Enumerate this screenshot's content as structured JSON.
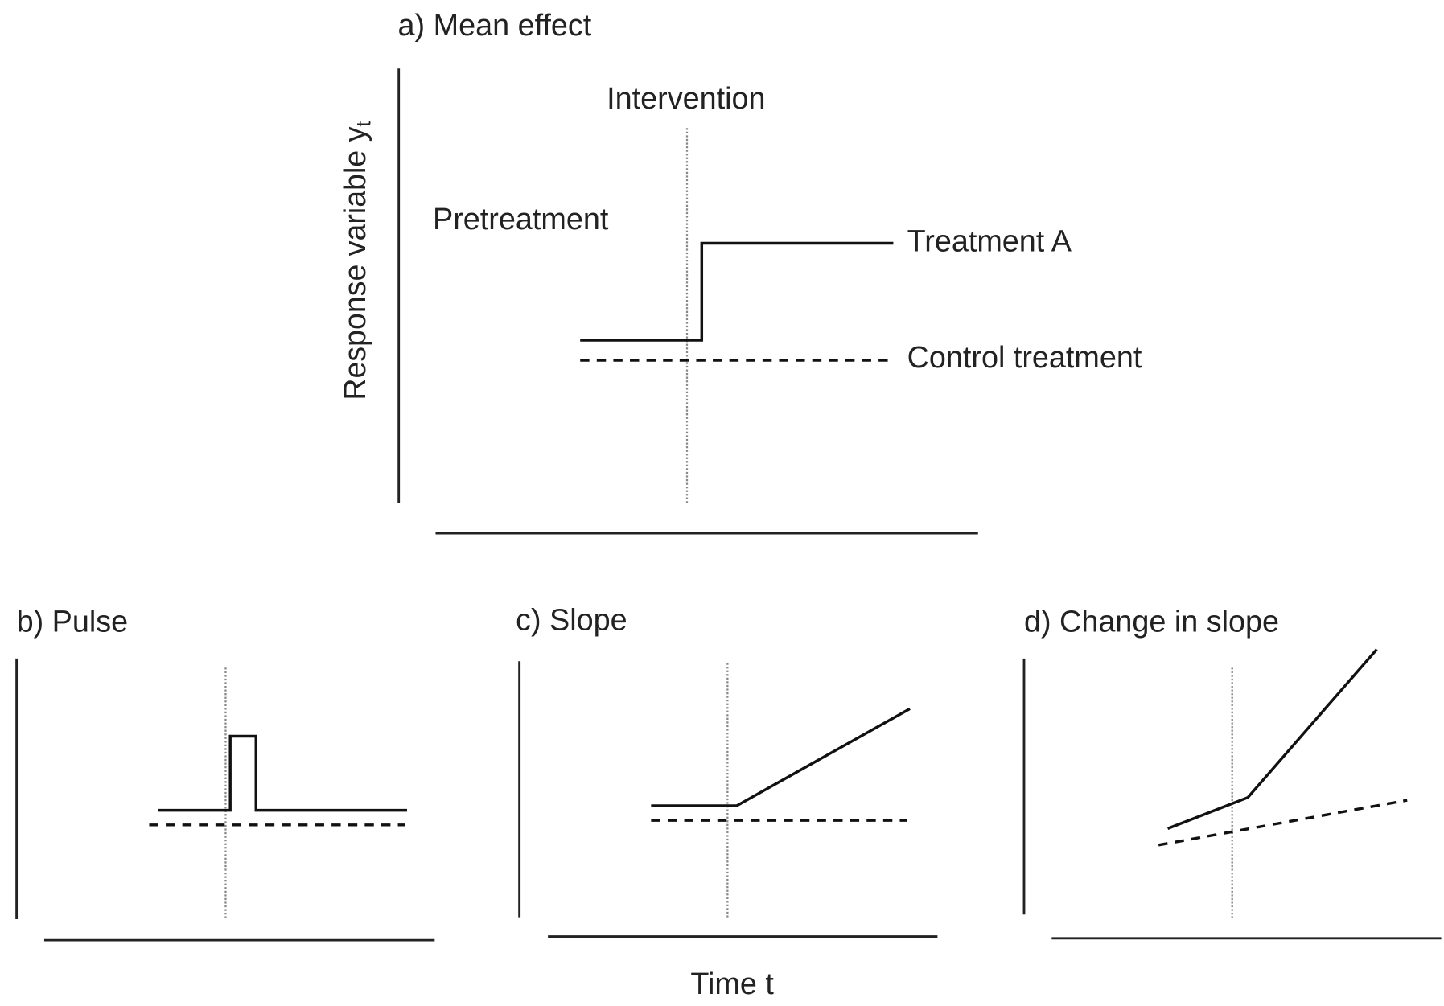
{
  "panels": [
    {
      "title": "a) Mean effect",
      "y_axis_label": {
        "text": "Response variable y",
        "subscript": "t"
      },
      "annotations": {
        "intervention": "Intervention",
        "pretreatment": "Pretreatment",
        "treatment": "Treatment A",
        "control": "Control treatment"
      }
    },
    {
      "title": "b) Pulse"
    },
    {
      "title": "c) Slope"
    },
    {
      "title": "d) Change in slope"
    }
  ],
  "x_axis_label": "Time t"
}
